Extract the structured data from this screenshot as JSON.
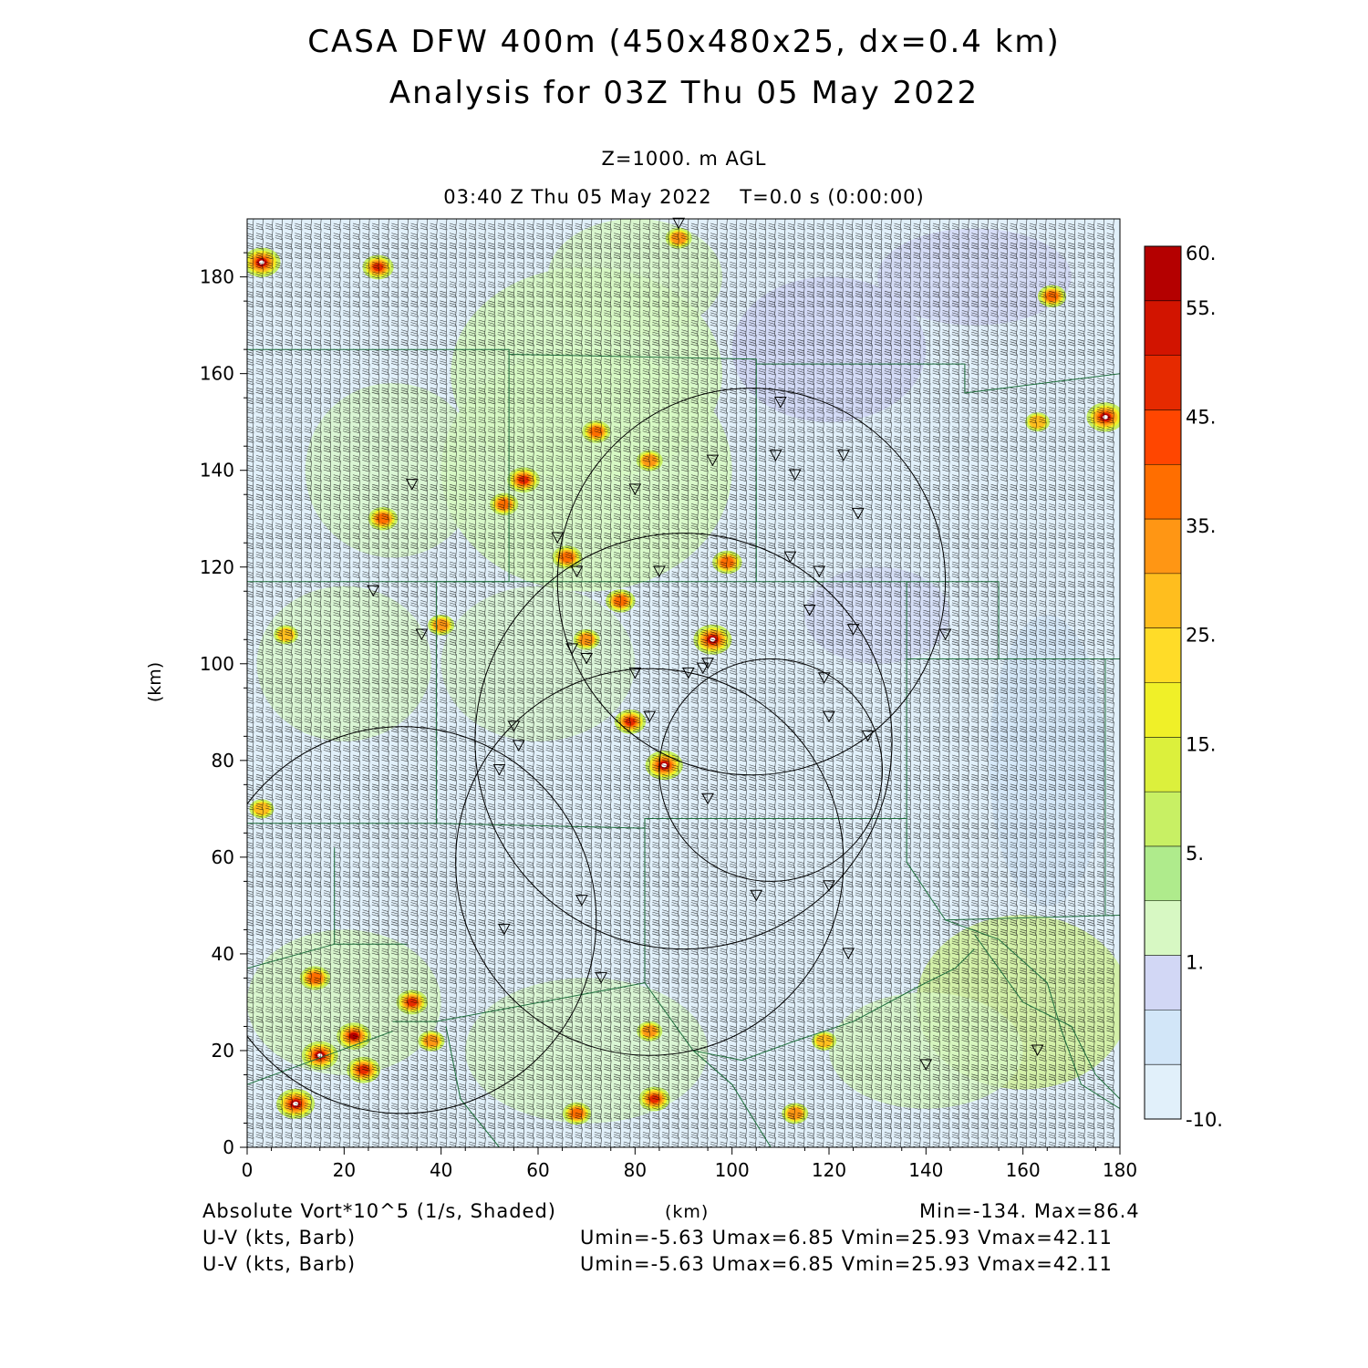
{
  "chart_data": {
    "type": "heatmap",
    "title_line1": "CASA DFW 400m (450x480x25, dx=0.4 km)",
    "title_line2": "Analysis for 03Z Thu 05 May 2022",
    "level_label": "Z=1000. m AGL",
    "time_label": "03:40 Z Thu 05 May 2022    T=0.0 s (0:00:00)",
    "xlabel": "(km)",
    "ylabel": "(km)",
    "xlim": [
      0,
      180
    ],
    "ylim": [
      0,
      192
    ],
    "x_ticks": [
      0,
      20,
      40,
      60,
      80,
      100,
      120,
      140,
      160,
      180
    ],
    "y_ticks": [
      0,
      20,
      40,
      60,
      80,
      100,
      120,
      140,
      160,
      180
    ],
    "colorbar": {
      "labels": [
        "60.",
        "55.",
        "45.",
        "35.",
        "25.",
        "15.",
        "5.",
        "1.",
        "-10."
      ],
      "colors": [
        "#b40000",
        "#d21400",
        "#e62a00",
        "#ff4600",
        "#ff6e00",
        "#ff9614",
        "#ffbe1e",
        "#ffdc28",
        "#f0f028",
        "#dcf03c",
        "#c8f064",
        "#afeb8c",
        "#d7f8c3",
        "#d2d7f5",
        "#d2e6f8",
        "#e1f0fa"
      ]
    },
    "field_name": "Absolute Vort*10^5 (1/s, Shaded)",
    "field_range": "Min=-134. Max=86.4",
    "vector_field_1": "U-V (kts, Barb)",
    "vector_field_2": "U-V (kts, Barb)",
    "vector_stats_1": "Umin=-5.63 Umax=6.85 Vmin=25.93 Vmax=42.11",
    "vector_stats_2": "Umin=-5.63 Umax=6.85 Vmin=25.93 Vmax=42.11",
    "x_axis_unit": "(km)",
    "vorticity_maxima": [
      {
        "x": 10,
        "y": 9,
        "v": 60
      },
      {
        "x": 15,
        "y": 19,
        "v": 55
      },
      {
        "x": 22,
        "y": 23,
        "v": 50
      },
      {
        "x": 24,
        "y": 16,
        "v": 48
      },
      {
        "x": 14,
        "y": 35,
        "v": 40
      },
      {
        "x": 34,
        "y": 30,
        "v": 42
      },
      {
        "x": 38,
        "y": 22,
        "v": 30
      },
      {
        "x": 3,
        "y": 183,
        "v": 58
      },
      {
        "x": 27,
        "y": 182,
        "v": 42
      },
      {
        "x": 28,
        "y": 130,
        "v": 38
      },
      {
        "x": 57,
        "y": 138,
        "v": 45
      },
      {
        "x": 53,
        "y": 133,
        "v": 35
      },
      {
        "x": 66,
        "y": 122,
        "v": 38
      },
      {
        "x": 72,
        "y": 148,
        "v": 35
      },
      {
        "x": 83,
        "y": 142,
        "v": 30
      },
      {
        "x": 96,
        "y": 105,
        "v": 60
      },
      {
        "x": 86,
        "y": 79,
        "v": 58
      },
      {
        "x": 79,
        "y": 88,
        "v": 42
      },
      {
        "x": 77,
        "y": 113,
        "v": 38
      },
      {
        "x": 70,
        "y": 105,
        "v": 30
      },
      {
        "x": 99,
        "y": 121,
        "v": 38
      },
      {
        "x": 89,
        "y": 188,
        "v": 30
      },
      {
        "x": 177,
        "y": 151,
        "v": 58
      },
      {
        "x": 166,
        "y": 176,
        "v": 35
      },
      {
        "x": 163,
        "y": 150,
        "v": 25
      },
      {
        "x": 84,
        "y": 10,
        "v": 42
      },
      {
        "x": 68,
        "y": 7,
        "v": 35
      },
      {
        "x": 83,
        "y": 24,
        "v": 28
      },
      {
        "x": 119,
        "y": 22,
        "v": 25
      },
      {
        "x": 113,
        "y": 7,
        "v": 30
      },
      {
        "x": 8,
        "y": 106,
        "v": 25
      },
      {
        "x": 3,
        "y": 70,
        "v": 25
      },
      {
        "x": 40,
        "y": 108,
        "v": 30
      }
    ],
    "station_markers": [
      [
        89,
        191
      ],
      [
        34,
        137
      ],
      [
        26,
        115
      ],
      [
        36,
        106
      ],
      [
        64,
        126
      ],
      [
        80,
        136
      ],
      [
        96,
        142
      ],
      [
        110,
        154
      ],
      [
        109,
        143
      ],
      [
        113,
        139
      ],
      [
        123,
        143
      ],
      [
        126,
        131
      ],
      [
        112,
        122
      ],
      [
        118,
        119
      ],
      [
        116,
        111
      ],
      [
        125,
        107
      ],
      [
        144,
        106
      ],
      [
        68,
        119
      ],
      [
        85,
        119
      ],
      [
        67,
        103
      ],
      [
        70,
        101
      ],
      [
        80,
        98
      ],
      [
        91,
        98
      ],
      [
        94,
        99
      ],
      [
        95,
        100
      ],
      [
        119,
        97
      ],
      [
        120,
        89
      ],
      [
        128,
        85
      ],
      [
        83,
        89
      ],
      [
        55,
        87
      ],
      [
        56,
        83
      ],
      [
        52,
        78
      ],
      [
        95,
        72
      ],
      [
        69,
        51
      ],
      [
        105,
        52
      ],
      [
        120,
        54
      ],
      [
        124,
        40
      ],
      [
        53,
        45
      ],
      [
        73,
        35
      ],
      [
        140,
        17
      ],
      [
        163,
        20
      ]
    ],
    "range_rings": [
      {
        "cx": 32,
        "cy": 47,
        "r": 40
      },
      {
        "cx": 90,
        "cy": 84,
        "r": 43
      },
      {
        "cx": 83,
        "cy": 59,
        "r": 40
      },
      {
        "cx": 104,
        "cy": 117,
        "r": 40
      },
      {
        "cx": 108,
        "cy": 78,
        "r": 23
      }
    ],
    "county_lines": [
      [
        [
          0,
          165
        ],
        [
          54,
          165
        ],
        [
          54,
          117
        ],
        [
          0,
          117
        ]
      ],
      [
        [
          54,
          164
        ],
        [
          105,
          163
        ],
        [
          105,
          162
        ],
        [
          148,
          162
        ],
        [
          148,
          156
        ],
        [
          180,
          160
        ]
      ],
      [
        [
          105,
          162
        ],
        [
          105,
          117
        ],
        [
          54,
          117
        ]
      ],
      [
        [
          54,
          117
        ],
        [
          39,
          117
        ],
        [
          39,
          67
        ],
        [
          0,
          67
        ]
      ],
      [
        [
          39,
          67
        ],
        [
          82,
          66
        ],
        [
          82,
          68
        ],
        [
          136,
          68
        ],
        [
          136,
          117
        ],
        [
          105,
          117
        ]
      ],
      [
        [
          136,
          117
        ],
        [
          155,
          117
        ],
        [
          155,
          101
        ],
        [
          180,
          101
        ]
      ],
      [
        [
          155,
          101
        ],
        [
          136,
          101
        ]
      ],
      [
        [
          82,
          66
        ],
        [
          82,
          34
        ],
        [
          39,
          26
        ],
        [
          30,
          26
        ]
      ],
      [
        [
          136,
          68
        ],
        [
          136,
          59
        ],
        [
          144,
          47
        ],
        [
          180,
          48
        ]
      ],
      [
        [
          177,
          48
        ],
        [
          177,
          101
        ]
      ],
      [
        [
          18,
          42
        ],
        [
          33,
          42
        ]
      ],
      [
        [
          0,
          37
        ],
        [
          18,
          42
        ],
        [
          18,
          62
        ]
      ],
      [
        [
          0,
          13
        ],
        [
          30,
          24
        ]
      ],
      [
        [
          41,
          25
        ],
        [
          44,
          10
        ],
        [
          52,
          0
        ]
      ],
      [
        [
          82,
          34
        ],
        [
          92,
          20
        ],
        [
          100,
          13
        ],
        [
          108,
          0
        ]
      ],
      [
        [
          92,
          20
        ],
        [
          102,
          18
        ],
        [
          113,
          22
        ],
        [
          125,
          26
        ],
        [
          138,
          33
        ],
        [
          146,
          37
        ],
        [
          150,
          41
        ]
      ],
      [
        [
          144,
          47
        ],
        [
          155,
          43
        ],
        [
          165,
          34
        ],
        [
          168,
          24
        ],
        [
          172,
          13
        ],
        [
          180,
          8
        ]
      ],
      [
        [
          150,
          44
        ],
        [
          160,
          30
        ],
        [
          170,
          25
        ],
        [
          175,
          15
        ],
        [
          180,
          10
        ]
      ]
    ]
  }
}
